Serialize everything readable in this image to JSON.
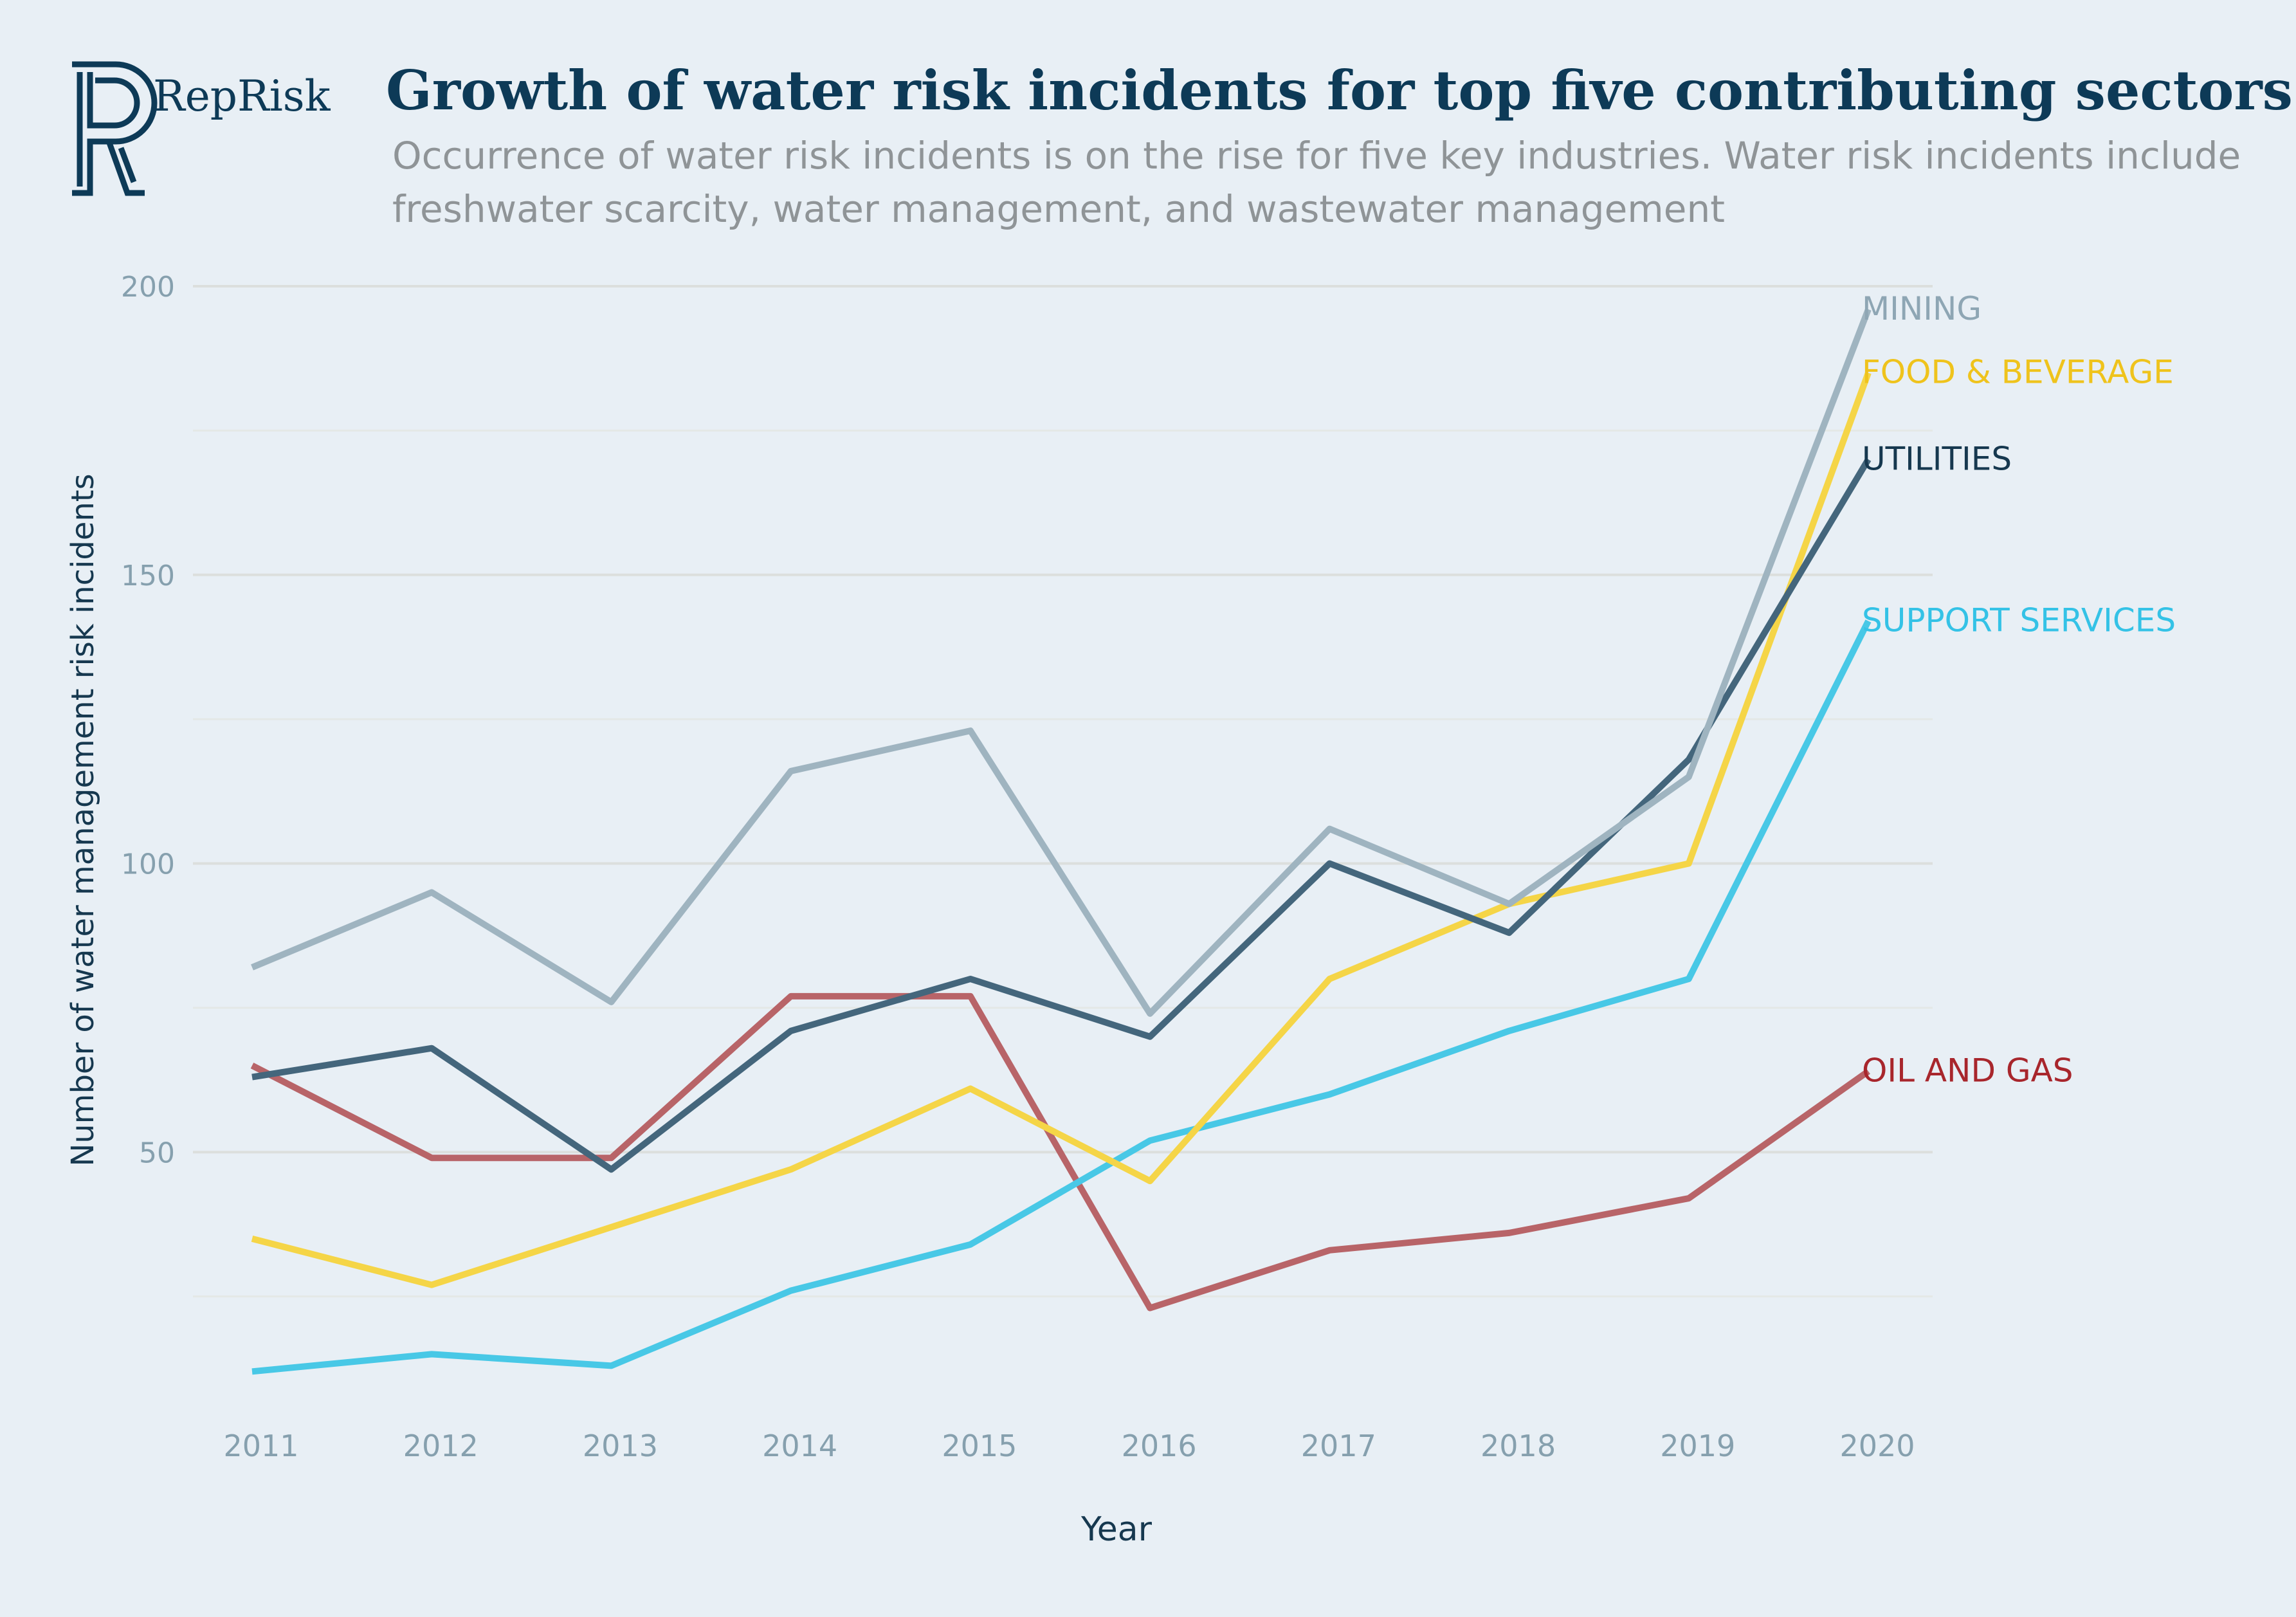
{
  "brand": {
    "name": "RepRisk",
    "logo_letter": "R"
  },
  "colors": {
    "background": "#e8eff5",
    "title": "#0d3a57",
    "grid": "#dde2e2"
  },
  "chart_data": {
    "type": "line",
    "title": "Growth of water risk incidents for top five contributing sectors",
    "subtitle_lines": [
      "Occurrence of water risk incidents is on the rise for five key industries. Water risk incidents include",
      "freshwater scarcity, water management, and wastewater management"
    ],
    "xlabel": "Year",
    "ylabel": "Number of water management risk incidents",
    "x": [
      2011,
      2012,
      2013,
      2014,
      2015,
      2016,
      2017,
      2018,
      2019,
      2020
    ],
    "yticks": [
      50,
      100,
      150,
      200
    ],
    "ylim": [
      0,
      200
    ],
    "grid": true,
    "legend": "direct labels at line ends (right)",
    "series": [
      {
        "name": "MINING",
        "color": "#9fb4c0",
        "label_color": "#8ea6b4",
        "values": [
          82,
          95,
          76,
          116,
          123,
          74,
          106,
          93,
          115,
          196
        ]
      },
      {
        "name": "FOOD & BEVERAGE",
        "color": "#f5d547",
        "label_color": "#efc31c",
        "values": [
          35,
          27,
          37,
          47,
          61,
          45,
          80,
          93,
          100,
          185
        ]
      },
      {
        "name": "UTILITIES",
        "color": "#44667c",
        "label_color": "#16384f",
        "values": [
          63,
          68,
          47,
          71,
          80,
          70,
          100,
          88,
          118,
          170
        ]
      },
      {
        "name": "SUPPORT SERVICES",
        "color": "#48c8e6",
        "label_color": "#34c2e6",
        "values": [
          12,
          15,
          13,
          26,
          34,
          52,
          60,
          71,
          80,
          142
        ]
      },
      {
        "name": "OIL AND GAS",
        "color": "#b86468",
        "label_color": "#a8262c",
        "values": [
          65,
          49,
          49,
          77,
          77,
          23,
          33,
          36,
          42,
          64
        ]
      }
    ]
  }
}
